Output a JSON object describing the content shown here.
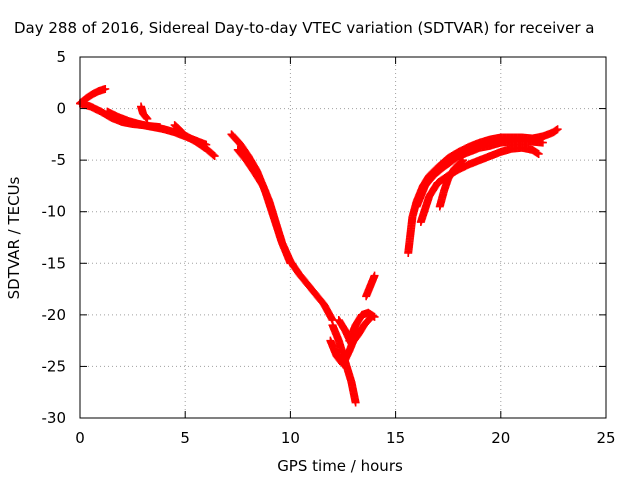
{
  "chart_data": {
    "type": "scatter",
    "title": "Day 288 of 2016, Sidereal Day-to-day VTEC variation (SDTVAR) for receiver a",
    "xlabel": "GPS time / hours",
    "ylabel": "SDTVAR / TECUs",
    "xlim": [
      0,
      25
    ],
    "ylim": [
      -30,
      5
    ],
    "xticks": [
      0,
      5,
      10,
      15,
      20,
      25
    ],
    "yticks": [
      -30,
      -25,
      -20,
      -15,
      -10,
      -5,
      0,
      5
    ],
    "xtick_labels": [
      "0",
      "5",
      "10",
      "15",
      "20",
      "25"
    ],
    "ytick_labels": [
      "-30",
      "-25",
      "-20",
      "-15",
      "-10",
      "-5",
      "0",
      "5"
    ],
    "grid": true,
    "marker": "plus",
    "series_color": "#ff0000",
    "series": [
      {
        "x": [
          0.0,
          0.5,
          1.0,
          1.5,
          2.0,
          2.5,
          3.0,
          3.5,
          4.0,
          4.5,
          5.0,
          5.5,
          6.0
        ],
        "y": [
          0.5,
          0.2,
          -0.3,
          -0.9,
          -1.3,
          -1.5,
          -1.6,
          -1.8,
          -2.0,
          -2.3,
          -2.7,
          -3.1,
          -3.5
        ]
      },
      {
        "x": [
          0.0,
          0.3,
          0.6,
          0.9,
          1.2
        ],
        "y": [
          0.5,
          1.0,
          1.4,
          1.7,
          1.9
        ]
      },
      {
        "x": [
          1.3,
          1.8,
          2.3,
          2.8,
          3.3,
          3.8
        ],
        "y": [
          -0.3,
          -0.8,
          -1.2,
          -1.5,
          -1.7,
          -1.8
        ]
      },
      {
        "x": [
          2.9,
          3.0,
          3.2
        ],
        "y": [
          0.2,
          -0.5,
          -1.0
        ]
      },
      {
        "x": [
          4.5,
          5.0,
          5.5,
          6.0,
          6.4
        ],
        "y": [
          -1.6,
          -2.6,
          -3.2,
          -3.9,
          -4.6
        ]
      },
      {
        "x": [
          7.2,
          7.6,
          8.0,
          8.4,
          8.8,
          9.2,
          9.6,
          10.0,
          10.4,
          10.8,
          11.2,
          11.6,
          12.0
        ],
        "y": [
          -2.5,
          -3.4,
          -4.6,
          -6.0,
          -8.0,
          -10.5,
          -13.0,
          -14.8,
          -16.0,
          -17.0,
          -18.0,
          -19.0,
          -20.5
        ]
      },
      {
        "x": [
          7.5,
          7.9,
          8.3,
          8.7,
          9.0,
          9.3,
          9.6,
          10.0
        ],
        "y": [
          -4.0,
          -5.0,
          -6.2,
          -7.5,
          -9.0,
          -11.0,
          -13.0,
          -15.0
        ]
      },
      {
        "x": [
          12.0,
          12.3,
          12.6,
          12.9,
          13.1
        ],
        "y": [
          -21.0,
          -22.5,
          -24.5,
          -26.5,
          -28.5
        ]
      },
      {
        "x": [
          11.9,
          12.2,
          12.5,
          12.8,
          13.1
        ],
        "y": [
          -22.5,
          -24.0,
          -24.8,
          -23.5,
          -22.0
        ]
      },
      {
        "x": [
          12.3,
          12.6,
          12.9,
          13.2,
          13.5,
          13.8
        ],
        "y": [
          -20.5,
          -21.5,
          -22.8,
          -22.0,
          -21.0,
          -20.3
        ]
      },
      {
        "x": [
          12.8,
          13.1,
          13.4,
          13.7,
          14.0
        ],
        "y": [
          -22.5,
          -21.0,
          -20.0,
          -19.8,
          -20.2
        ]
      },
      {
        "x": [
          13.6,
          13.8,
          14.0
        ],
        "y": [
          -18.2,
          -17.2,
          -16.2
        ]
      },
      {
        "x": [
          15.6,
          15.8,
          16.0,
          16.3,
          16.6,
          17.0,
          17.5,
          18.0,
          18.5,
          19.0,
          19.5,
          20.0,
          20.5,
          21.0,
          21.5,
          22.0,
          22.5,
          22.7
        ],
        "y": [
          -14.0,
          -10.5,
          -9.0,
          -7.5,
          -6.5,
          -5.7,
          -4.8,
          -4.2,
          -3.7,
          -3.3,
          -3.0,
          -2.8,
          -2.8,
          -2.8,
          -2.9,
          -2.7,
          -2.3,
          -2.0
        ]
      },
      {
        "x": [
          16.0,
          16.4,
          16.8,
          17.2,
          17.6,
          18.0,
          18.5,
          19.0,
          19.5,
          20.0,
          20.5,
          21.0,
          21.5,
          22.0
        ],
        "y": [
          -9.5,
          -7.5,
          -6.5,
          -5.8,
          -5.2,
          -4.6,
          -4.2,
          -3.8,
          -3.6,
          -3.3,
          -3.2,
          -3.1,
          -3.2,
          -3.3
        ]
      },
      {
        "x": [
          16.2,
          16.6,
          17.0,
          17.5,
          18.0,
          18.5,
          19.0,
          19.5,
          20.0,
          20.5,
          21.0,
          21.5,
          21.8
        ],
        "y": [
          -11.0,
          -8.5,
          -7.2,
          -6.5,
          -5.9,
          -5.4,
          -5.0,
          -4.6,
          -4.2,
          -3.9,
          -3.8,
          -4.0,
          -4.4
        ]
      },
      {
        "x": [
          17.1,
          17.3,
          17.5,
          17.8,
          18.2
        ],
        "y": [
          -9.5,
          -8.0,
          -6.8,
          -5.8,
          -5.0
        ]
      }
    ]
  }
}
